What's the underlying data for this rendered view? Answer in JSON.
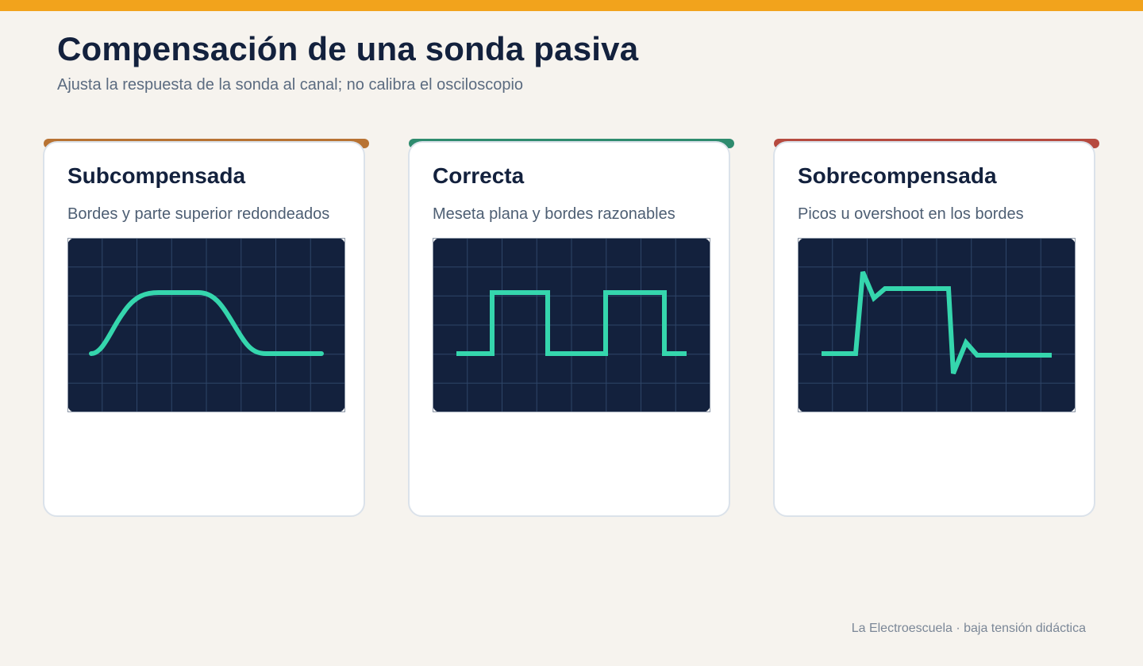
{
  "header": {
    "title": "Compensación de una sonda pasiva",
    "subtitle": "Ajusta la respuesta de la sonda al canal; no calibra el osciloscopio"
  },
  "colors": {
    "top_bar": "#f2a31c",
    "background": "#f6f3ee",
    "screen": "#13213d",
    "trace": "#35d6ad"
  },
  "cards": [
    {
      "title": "Subcompensada",
      "description": "Bordes y parte superior redondeados",
      "accent": "#b87333",
      "waveform": "rounded-square-wave"
    },
    {
      "title": "Correcta",
      "description": "Meseta plana y bordes razonables",
      "accent": "#2e8b6e",
      "waveform": "square-wave"
    },
    {
      "title": "Sobrecompensada",
      "description": "Picos u overshoot en los bordes",
      "accent": "#b64a3f",
      "waveform": "overshoot-square-wave"
    }
  ],
  "footer": {
    "text": "La Electroescuela · baja tensión didáctica"
  }
}
